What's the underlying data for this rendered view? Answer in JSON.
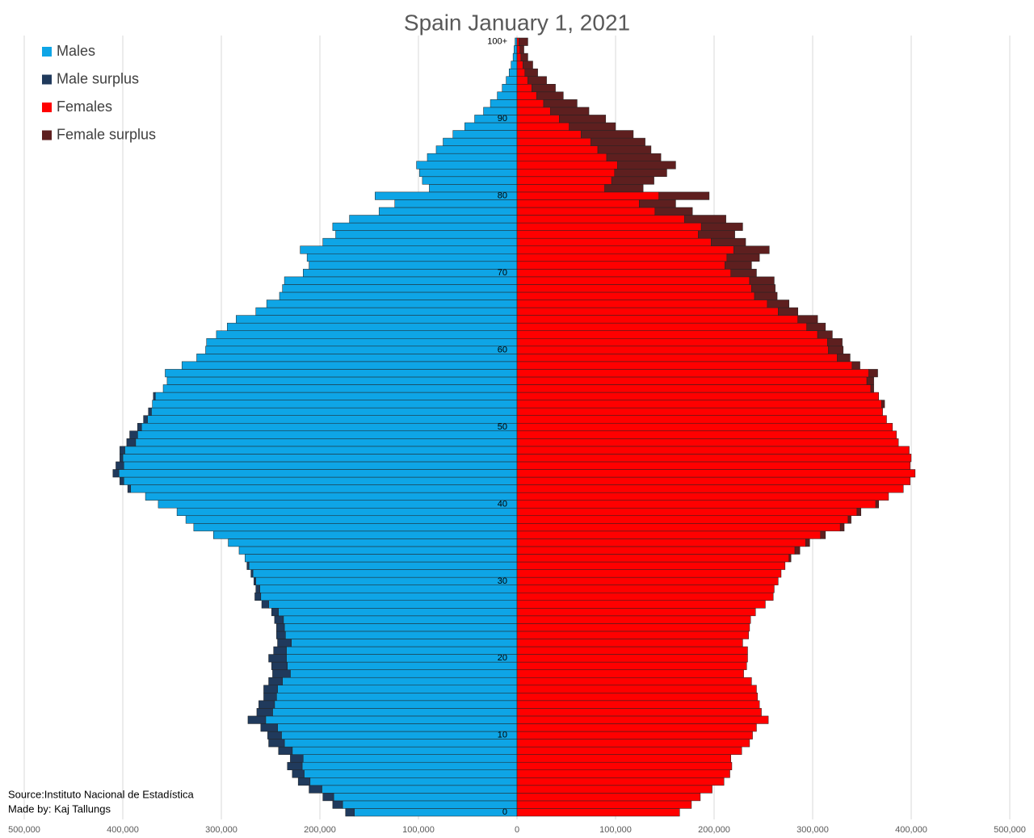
{
  "chart_data": {
    "type": "pyramid",
    "title": "Spain January 1, 2021",
    "annotations": [
      "Source:Instituto Nacional de Estadística",
      "Made by: Kaj Tallungs"
    ],
    "categories": [
      "0",
      null,
      null,
      null,
      null,
      null,
      null,
      null,
      null,
      null,
      "10",
      null,
      null,
      null,
      null,
      null,
      null,
      null,
      null,
      null,
      "20",
      null,
      null,
      null,
      null,
      null,
      null,
      null,
      null,
      null,
      "30",
      null,
      null,
      null,
      null,
      null,
      null,
      null,
      null,
      null,
      "40",
      null,
      null,
      null,
      null,
      null,
      null,
      null,
      null,
      null,
      "50",
      null,
      null,
      null,
      null,
      null,
      null,
      null,
      null,
      null,
      "60",
      null,
      null,
      null,
      null,
      null,
      null,
      null,
      null,
      null,
      "70",
      null,
      null,
      null,
      null,
      null,
      null,
      null,
      null,
      null,
      "80",
      null,
      null,
      null,
      null,
      null,
      null,
      null,
      null,
      null,
      "90",
      null,
      null,
      null,
      null,
      null,
      null,
      null,
      null,
      null,
      "100+"
    ],
    "series": [
      {
        "name": "Males",
        "color": "#0ea5e6",
        "values": [
          165000,
          177000,
          186000,
          198000,
          210000,
          216000,
          218000,
          217000,
          228000,
          236000,
          239000,
          243000,
          255000,
          248000,
          246000,
          244000,
          243000,
          238000,
          230000,
          233000,
          234000,
          234000,
          229000,
          235000,
          236000,
          237000,
          242000,
          252000,
          260000,
          261000,
          265000,
          268000,
          272000,
          276000,
          282000,
          293000,
          308000,
          328000,
          336000,
          345000,
          364000,
          377000,
          392000,
          399000,
          404000,
          399000,
          400000,
          398000,
          387000,
          385000,
          381000,
          375000,
          371000,
          370000,
          367000,
          359000,
          355000,
          357000,
          340000,
          325000,
          316000,
          315000,
          305000,
          294000,
          285000,
          265000,
          254000,
          241000,
          238000,
          236000,
          217000,
          211000,
          213000,
          220000,
          197000,
          184000,
          187000,
          170000,
          140000,
          124000,
          144000,
          89000,
          96000,
          99000,
          102000,
          91000,
          82000,
          75000,
          65000,
          53000,
          43000,
          34000,
          27000,
          20000,
          15000,
          11000,
          8000,
          6000,
          4000,
          3000,
          2000
        ]
      },
      {
        "name": "Male surplus",
        "color": "#203a5c",
        "values": [
          9000,
          10000,
          11000,
          13000,
          12000,
          12000,
          15000,
          13000,
          14000,
          16000,
          14000,
          17000,
          18000,
          16000,
          16000,
          13000,
          14000,
          14000,
          18000,
          16000,
          18000,
          13000,
          14000,
          9000,
          8000,
          9000,
          7000,
          7000,
          6000,
          4000,
          2000,
          2000,
          2000,
          0,
          0,
          0,
          0,
          0,
          0,
          0,
          0,
          0,
          3000,
          4000,
          6000,
          8000,
          3000,
          5000,
          9000,
          8000,
          4000,
          4000,
          3000,
          0,
          2000,
          0,
          0,
          0,
          0,
          0,
          0,
          0,
          0,
          0,
          0,
          0,
          0,
          0,
          0,
          0,
          0,
          0,
          0,
          0,
          0,
          0,
          0,
          0,
          0,
          0,
          0,
          0,
          0,
          0,
          0,
          0,
          0,
          0,
          0,
          0,
          0,
          0,
          0,
          0,
          0,
          0,
          0,
          0,
          0,
          0,
          0
        ]
      },
      {
        "name": "Females",
        "color": "#ff0000",
        "values": [
          165000,
          177000,
          186000,
          198000,
          210000,
          216000,
          218000,
          217000,
          228000,
          236000,
          239000,
          243000,
          255000,
          248000,
          246000,
          244000,
          243000,
          238000,
          230000,
          233000,
          234000,
          234000,
          229000,
          235000,
          236000,
          237000,
          242000,
          252000,
          260000,
          261000,
          265000,
          268000,
          272000,
          276000,
          282000,
          293000,
          308000,
          328000,
          336000,
          345000,
          364000,
          377000,
          392000,
          399000,
          404000,
          399000,
          400000,
          398000,
          387000,
          385000,
          381000,
          375000,
          371000,
          370000,
          367000,
          359000,
          355000,
          357000,
          340000,
          325000,
          316000,
          315000,
          305000,
          294000,
          285000,
          265000,
          254000,
          241000,
          238000,
          236000,
          217000,
          211000,
          213000,
          220000,
          197000,
          184000,
          187000,
          170000,
          140000,
          124000,
          144000,
          89000,
          96000,
          99000,
          102000,
          91000,
          82000,
          75000,
          65000,
          53000,
          43000,
          34000,
          27000,
          20000,
          15000,
          11000,
          8000,
          6000,
          4000,
          3000,
          2000
        ]
      },
      {
        "name": "Female surplus",
        "color": "#5e1f1f",
        "values": [
          0,
          0,
          0,
          0,
          0,
          0,
          0,
          0,
          0,
          0,
          0,
          0,
          0,
          0,
          0,
          0,
          0,
          0,
          0,
          0,
          0,
          0,
          0,
          0,
          0,
          0,
          0,
          0,
          0,
          0,
          0,
          0,
          0,
          2000,
          5000,
          4000,
          5000,
          4000,
          3000,
          4000,
          3000,
          0,
          0,
          0,
          0,
          0,
          0,
          0,
          0,
          0,
          0,
          0,
          0,
          3000,
          0,
          3000,
          7000,
          9000,
          8000,
          13000,
          15000,
          15000,
          15000,
          19000,
          20000,
          20000,
          22000,
          23000,
          24000,
          25000,
          26000,
          27000,
          33000,
          36000,
          35000,
          37000,
          42000,
          42000,
          38000,
          37000,
          51000,
          39000,
          43000,
          53000,
          59000,
          55000,
          54000,
          55000,
          53000,
          47000,
          47000,
          39000,
          34000,
          27000,
          24000,
          19000,
          13000,
          10000,
          7000,
          4000,
          9000
        ]
      }
    ],
    "xlim": [
      -500000,
      500000
    ],
    "xticks": [
      {
        "value": -500000,
        "label": "500,000"
      },
      {
        "value": -400000,
        "label": "400,000"
      },
      {
        "value": -300000,
        "label": "300,000"
      },
      {
        "value": -200000,
        "label": "200,000"
      },
      {
        "value": -100000,
        "label": "100,000"
      },
      0,
      {
        "value": 100000,
        "label": "100,000"
      },
      {
        "value": 200000,
        "label": "200,000"
      },
      {
        "value": 300000,
        "label": "300,000"
      },
      {
        "value": 400000,
        "label": "400,000"
      },
      {
        "value": 500000,
        "label": "500,000"
      }
    ],
    "grid": true
  }
}
